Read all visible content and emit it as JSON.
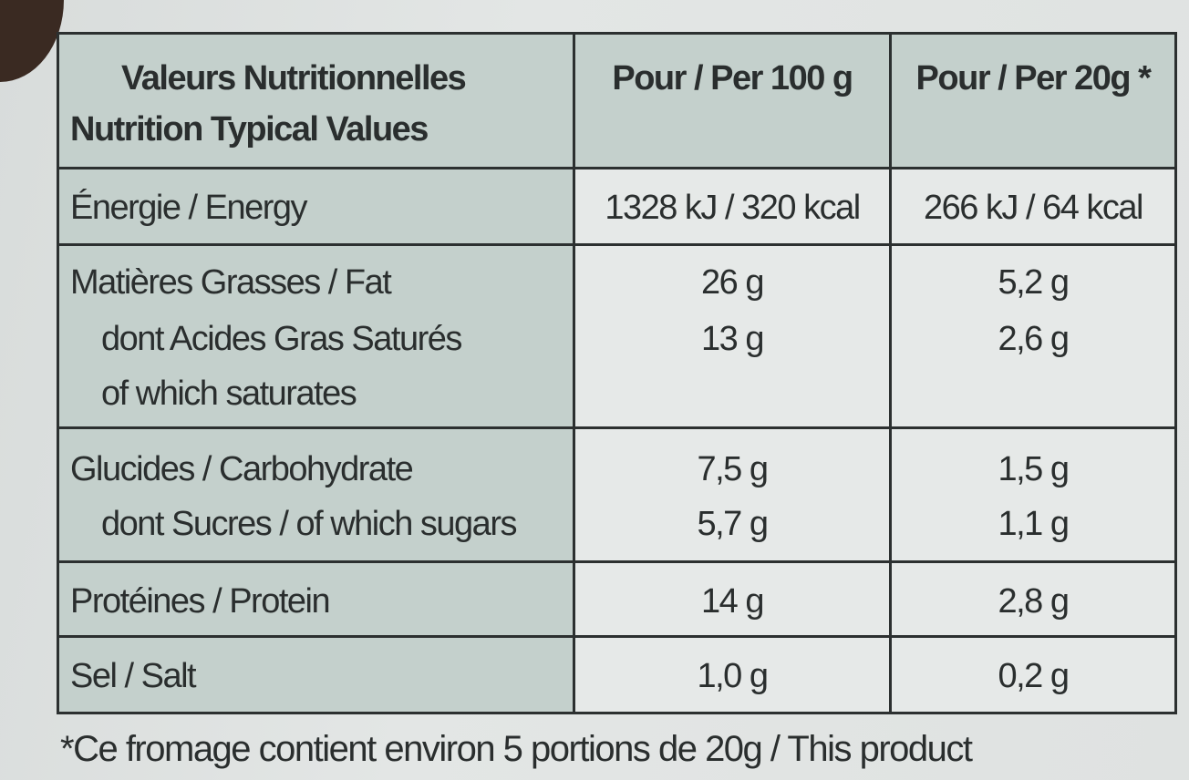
{
  "header": {
    "label_line1": "Valeurs Nutritionnelles",
    "label_line2": "Nutrition Typical Values",
    "col1": "Pour / Per 100 g",
    "col2": "Pour / Per 20g *"
  },
  "rows": [
    {
      "lines": [
        "Énergie / Energy"
      ],
      "per100": [
        "1328 kJ / 320 kcal"
      ],
      "per20": [
        "266 kJ / 64 kcal"
      ]
    },
    {
      "lines": [
        "Matières Grasses / Fat",
        "dont Acides Gras Saturés",
        "of which saturates"
      ],
      "per100": [
        "26 g",
        "13 g"
      ],
      "per20": [
        "5,2 g",
        "2,6 g"
      ]
    },
    {
      "lines": [
        "Glucides / Carbohydrate",
        "dont Sucres / of which sugars"
      ],
      "per100": [
        "7,5 g",
        "5,7 g"
      ],
      "per20": [
        "1,5 g",
        "1,1 g"
      ]
    },
    {
      "lines": [
        "Protéines / Protein"
      ],
      "per100": [
        "14 g"
      ],
      "per20": [
        "2,8 g"
      ]
    },
    {
      "lines": [
        "Sel / Salt"
      ],
      "per100": [
        "1,0 g"
      ],
      "per20": [
        "0,2 g"
      ]
    }
  ],
  "footnote": "*Ce fromage contient environ 5 portions de 20g / This product",
  "colors": {
    "label_bg": "#c4d0cc",
    "value_bg": "#e6e9e8",
    "border": "#2c3030"
  }
}
